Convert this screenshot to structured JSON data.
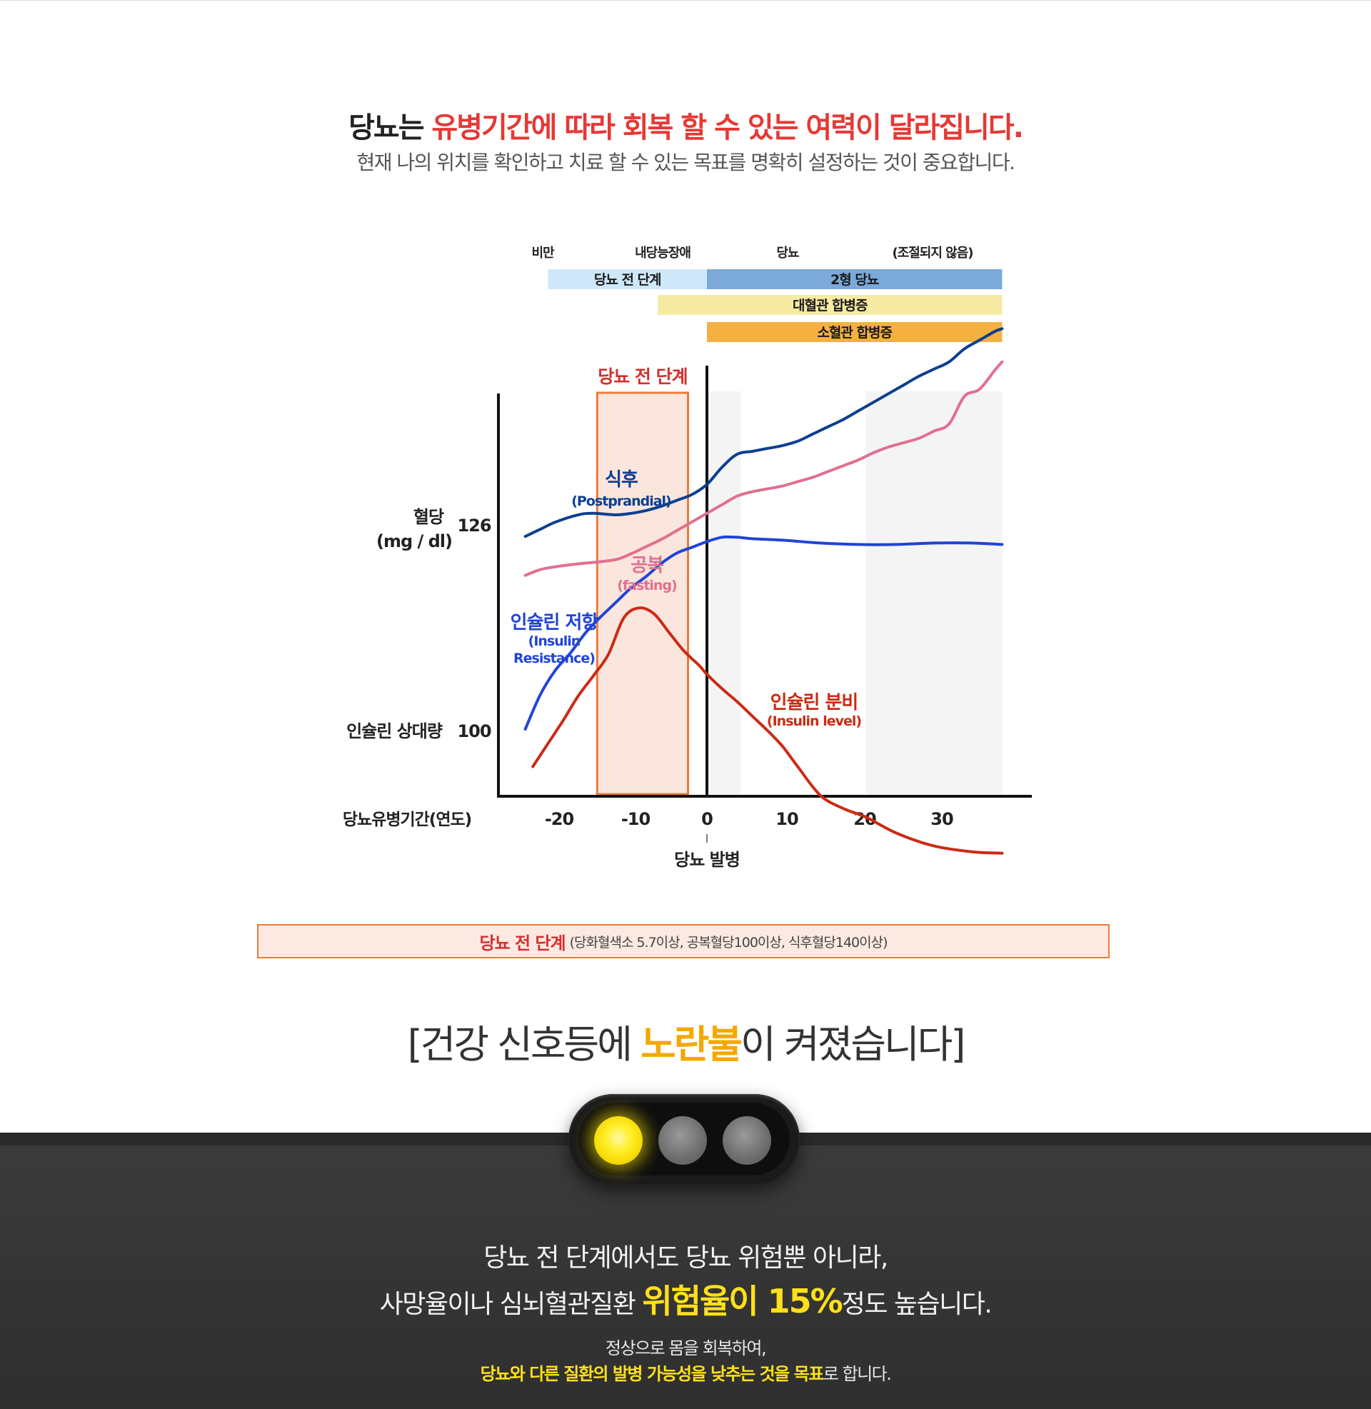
{
  "header": {
    "headline_prefix": "당뇨는 ",
    "headline_highlight": "유병기간에 따라 회복 할 수 있는 여력이 달라집니다.",
    "subheadline": "현재 나의 위치를 확인하고 치료 할 수 있는 목표를 명확히 설정하는 것이 중요합니다."
  },
  "chart_data": {
    "type": "line",
    "stage_labels": [
      "비만",
      "내당능장애",
      "당뇨",
      "(조절되지 않음)"
    ],
    "stage_bars": [
      {
        "label": "당뇨 전 단계",
        "from": -21,
        "to": 0,
        "color": "#cfe8f9"
      },
      {
        "label": "2형 당뇨",
        "from": 0,
        "to": 39,
        "color": "#7aa9da"
      },
      {
        "label": "대혈관 합병증",
        "from": -6.5,
        "to": 39,
        "color": "#f7eaa3"
      },
      {
        "label": "소혈관 합병증",
        "from": 0,
        "to": 39,
        "color": "#f4b141"
      }
    ],
    "highlight_region": {
      "label": "당뇨 전 단계",
      "from": -14.5,
      "to": -2.5
    },
    "shaded_regions": [
      {
        "from": 0,
        "to": 4.5
      },
      {
        "from": 21,
        "to": 39
      }
    ],
    "y_label_top": "혈당",
    "y_label_top_unit": "(mg / dl)",
    "y_tick_top": "126",
    "y_label_bottom": "인슐린 상대량",
    "y_tick_bottom": "100",
    "x_label": "당뇨유병기간(연도)",
    "x_ticks": [
      "-20",
      "-10",
      "0",
      "10",
      "20",
      "30"
    ],
    "x_tick_values": [
      -20,
      -10,
      0,
      10,
      20,
      30
    ],
    "onset_label": "당뇨 발병",
    "onset_x": 0,
    "xlim": [
      -27,
      39
    ],
    "series": [
      {
        "name": "식후",
        "name_en": "(Postprandial)",
        "color": "#0d3f8f",
        "x": [
          -24,
          -22,
          -20,
          -17,
          -15,
          -12,
          -10,
          -8,
          -6,
          -4,
          -2,
          0,
          2,
          4,
          6,
          8,
          10,
          12,
          14,
          16,
          18,
          20,
          22,
          24,
          26,
          28,
          30,
          32,
          34,
          36,
          38,
          39
        ],
        "values": [
          125.2,
          125.7,
          126.2,
          126.7,
          126.8,
          126.7,
          126.8,
          127.0,
          127.3,
          127.7,
          128.1,
          128.8,
          130.0,
          130.9,
          131.1,
          131.3,
          131.5,
          131.8,
          132.3,
          132.8,
          133.3,
          133.9,
          134.5,
          135.1,
          135.7,
          136.3,
          136.8,
          137.3,
          138.2,
          138.8,
          139.4,
          139.6
        ]
      },
      {
        "name": "공복",
        "name_en": "(fasting)",
        "color": "#e07090",
        "x": [
          -24,
          -22,
          -20,
          -17,
          -15,
          -12,
          -10,
          -8,
          -6,
          -4,
          -2,
          0,
          2,
          4,
          6,
          8,
          10,
          12,
          14,
          16,
          18,
          20,
          22,
          24,
          26,
          28,
          30,
          32,
          34,
          36,
          38,
          39
        ],
        "values": [
          122.5,
          122.9,
          123.1,
          123.3,
          123.4,
          123.6,
          124.0,
          124.5,
          125.0,
          125.6,
          126.2,
          126.8,
          127.4,
          128.0,
          128.3,
          128.5,
          128.7,
          129.0,
          129.3,
          129.7,
          130.1,
          130.5,
          131.0,
          131.4,
          131.7,
          132.0,
          132.5,
          133.0,
          134.9,
          135.4,
          136.7,
          137.3
        ]
      },
      {
        "name": "인슐린 저항",
        "name_en": "(Insulin Resistance)",
        "color": "#2144d6",
        "x": [
          -24,
          -22,
          -20,
          -18,
          -16,
          -14,
          -12,
          -10,
          -8,
          -6,
          -4,
          -2,
          0,
          2,
          4,
          6,
          10,
          15,
          20,
          25,
          30,
          35,
          39
        ],
        "values": [
          100.0,
          102.4,
          104.1,
          105.3,
          106.7,
          107.8,
          108.8,
          109.8,
          110.6,
          111.5,
          112.2,
          112.6,
          113.0,
          113.3,
          113.3,
          113.2,
          113.1,
          112.9,
          112.8,
          112.8,
          112.9,
          112.9,
          112.8
        ]
      },
      {
        "name": "인슐린 분비",
        "name_en": "(Insulin level)",
        "color": "#cc2a14",
        "x": [
          -23,
          -21,
          -19,
          -17,
          -15,
          -13,
          -11,
          -9,
          -7,
          -5,
          -3,
          -1,
          0,
          2,
          4,
          6,
          8,
          10,
          12,
          15,
          18,
          21,
          25,
          30,
          35,
          39
        ],
        "values": [
          97.4,
          99.0,
          100.6,
          102.3,
          103.7,
          105.2,
          107.7,
          108.4,
          108.0,
          106.7,
          105.4,
          104.4,
          103.8,
          102.8,
          101.9,
          100.9,
          99.9,
          98.8,
          97.4,
          95.4,
          94.5,
          93.9,
          92.8,
          91.9,
          91.5,
          91.4
        ]
      }
    ]
  },
  "criteria_box": {
    "bold": "당뇨 전 단계",
    "detail": "(당화혈색소 5.7이상, 공복혈당100이상, 식후혈당140이상)"
  },
  "signal": {
    "title_prefix": "[건강 신호등에 ",
    "title_highlight": "노란불",
    "title_suffix": "이 켜졌습니다]",
    "lamp_colors": [
      "#ffef2a",
      "#6c6c6c",
      "#6c6c6c"
    ]
  },
  "message": {
    "line1": "당뇨 전 단계에서도 당뇨 위험뿐 아니라,",
    "line2_prefix": "사망율이나 심뇌혈관질환 ",
    "line2_highlight": "위험율이 15%",
    "line2_suffix": "정도 높습니다.",
    "line3": "정상으로 몸을 회복하여,",
    "line4_highlight": "당뇨와 다른 질환의 발병 가능성을 낮추는 것을 목표",
    "line4_suffix": "로 합니다."
  }
}
